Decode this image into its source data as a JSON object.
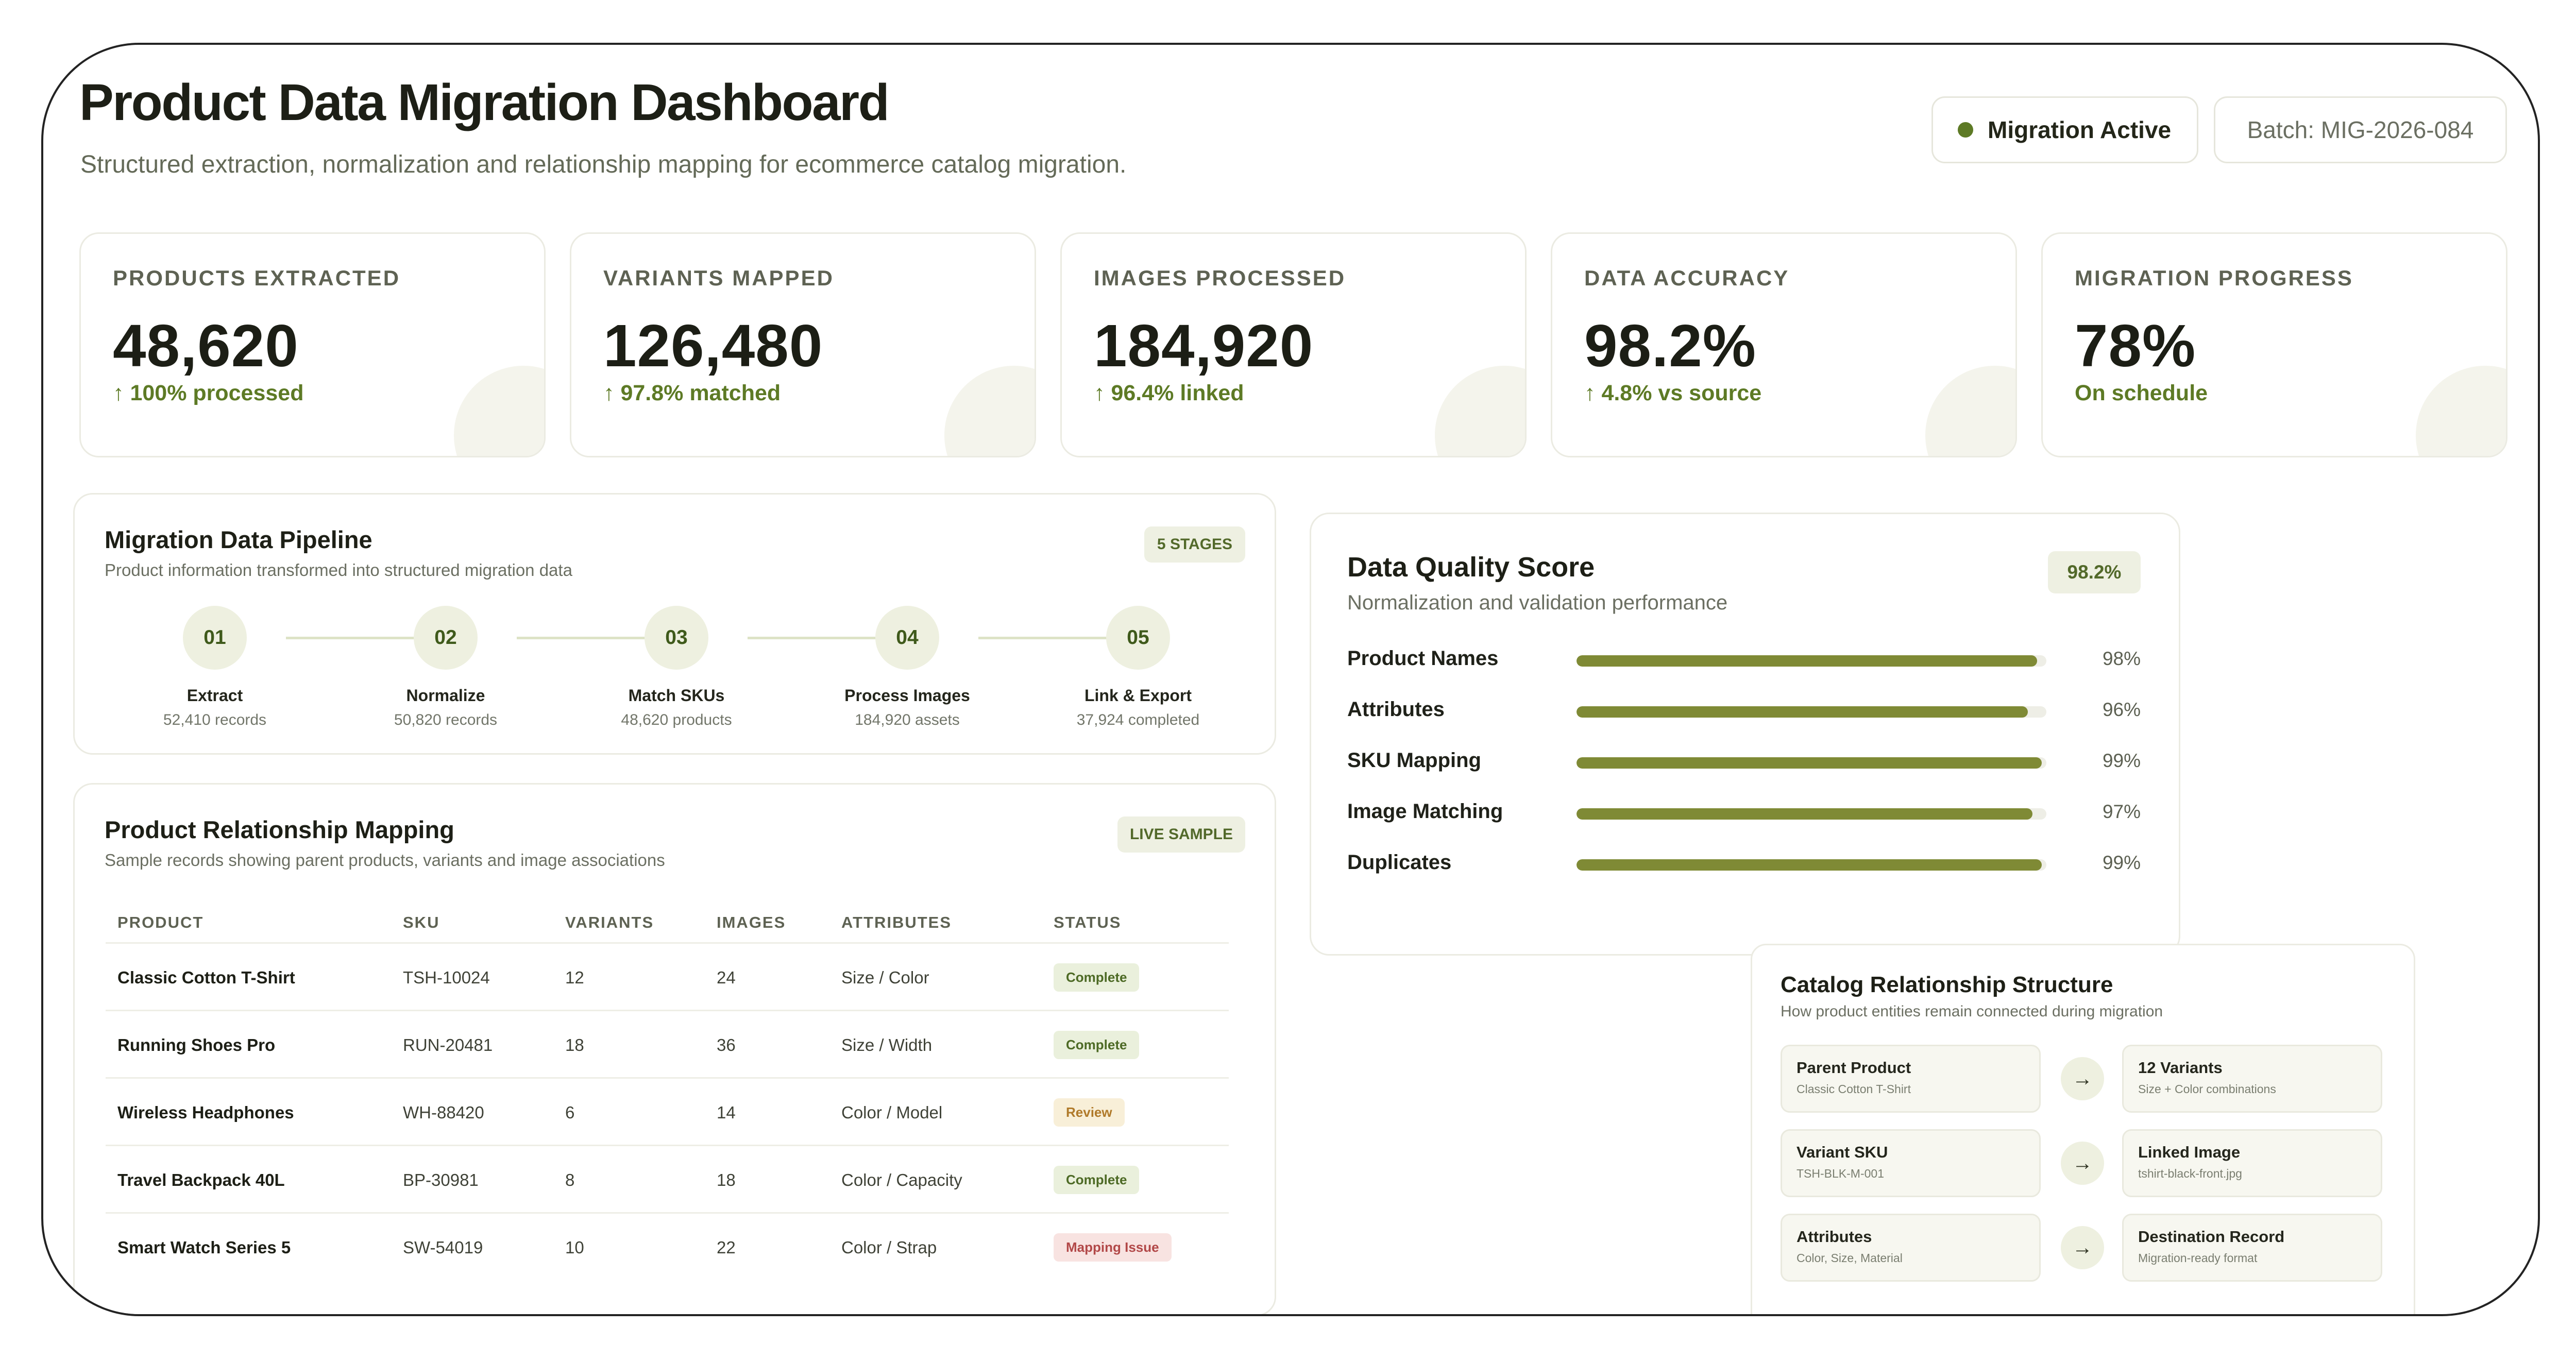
{
  "header": {
    "title": "Product Data Migration Dashboard",
    "subtitle": "Structured extraction, normalization and relationship mapping for ecommerce catalog migration.",
    "status_label": "Migration Active",
    "batch_label": "Batch: MIG-2026-084"
  },
  "kpis": [
    {
      "label": "PRODUCTS EXTRACTED",
      "value": "48,620",
      "delta": "↑ 100% processed"
    },
    {
      "label": "VARIANTS MAPPED",
      "value": "126,480",
      "delta": "↑ 97.8% matched"
    },
    {
      "label": "IMAGES PROCESSED",
      "value": "184,920",
      "delta": "↑ 96.4% linked"
    },
    {
      "label": "DATA ACCURACY",
      "value": "98.2%",
      "delta": "↑ 4.8% vs source"
    },
    {
      "label": "MIGRATION PROGRESS",
      "value": "78%",
      "delta": "On schedule"
    }
  ],
  "pipeline": {
    "title": "Migration Data Pipeline",
    "subtitle": "Product information transformed into structured migration data",
    "tag": "5 STAGES",
    "stages": [
      {
        "number": "01",
        "name": "Extract",
        "count": "52,410 records"
      },
      {
        "number": "02",
        "name": "Normalize",
        "count": "50,820 records"
      },
      {
        "number": "03",
        "name": "Match SKUs",
        "count": "48,620 products"
      },
      {
        "number": "04",
        "name": "Process Images",
        "count": "184,920 assets"
      },
      {
        "number": "05",
        "name": "Link & Export",
        "count": "37,924 completed"
      }
    ]
  },
  "mapping": {
    "title": "Product Relationship Mapping",
    "subtitle": "Sample records showing parent products, variants and image associations",
    "tag": "LIVE SAMPLE",
    "columns": [
      "PRODUCT",
      "SKU",
      "VARIANTS",
      "IMAGES",
      "ATTRIBUTES",
      "STATUS"
    ],
    "rows": [
      {
        "product": "Classic Cotton T-Shirt",
        "sku": "TSH-10024",
        "variants": "12",
        "images": "24",
        "attributes": "Size / Color",
        "status": "Complete",
        "status_type": "complete"
      },
      {
        "product": "Running Shoes Pro",
        "sku": "RUN-20481",
        "variants": "18",
        "images": "36",
        "attributes": "Size / Width",
        "status": "Complete",
        "status_type": "complete"
      },
      {
        "product": "Wireless Headphones",
        "sku": "WH-88420",
        "variants": "6",
        "images": "14",
        "attributes": "Color / Model",
        "status": "Review",
        "status_type": "review"
      },
      {
        "product": "Travel Backpack 40L",
        "sku": "BP-30981",
        "variants": "8",
        "images": "18",
        "attributes": "Color / Capacity",
        "status": "Complete",
        "status_type": "complete"
      },
      {
        "product": "Smart Watch Series 5",
        "sku": "SW-54019",
        "variants": "10",
        "images": "22",
        "attributes": "Color / Strap",
        "status": "Mapping Issue",
        "status_type": "issue"
      }
    ]
  },
  "quality": {
    "title": "Data Quality Score",
    "subtitle": "Normalization and validation performance",
    "score": "98.2%",
    "metrics": [
      {
        "label": "Product Names",
        "value": "98%",
        "fraction": 0.98
      },
      {
        "label": "Attributes",
        "value": "96%",
        "fraction": 0.96
      },
      {
        "label": "SKU Mapping",
        "value": "99%",
        "fraction": 0.99
      },
      {
        "label": "Image Matching",
        "value": "97%",
        "fraction": 0.97
      },
      {
        "label": "Duplicates",
        "value": "99%",
        "fraction": 0.99
      }
    ]
  },
  "structure": {
    "title": "Catalog Relationship Structure",
    "subtitle": "How product entities remain connected during migration",
    "pairs": [
      {
        "left": {
          "title": "Parent Product",
          "sub": "Classic Cotton T-Shirt"
        },
        "right": {
          "title": "12 Variants",
          "sub": "Size + Color combinations"
        }
      },
      {
        "left": {
          "title": "Variant SKU",
          "sub": "TSH-BLK-M-001"
        },
        "right": {
          "title": "Linked Image",
          "sub": "tshirt-black-front.jpg"
        }
      },
      {
        "left": {
          "title": "Attributes",
          "sub": "Color, Size, Material"
        },
        "right": {
          "title": "Destination Record",
          "sub": "Migration-ready format"
        }
      }
    ],
    "arrow_icon": "arrow-right-icon"
  },
  "colors": {
    "accent": "#5d7a25",
    "bar": "#7f8a35",
    "complete": "#4d6a25",
    "review": "#b07a2a",
    "issue": "#b24848"
  }
}
